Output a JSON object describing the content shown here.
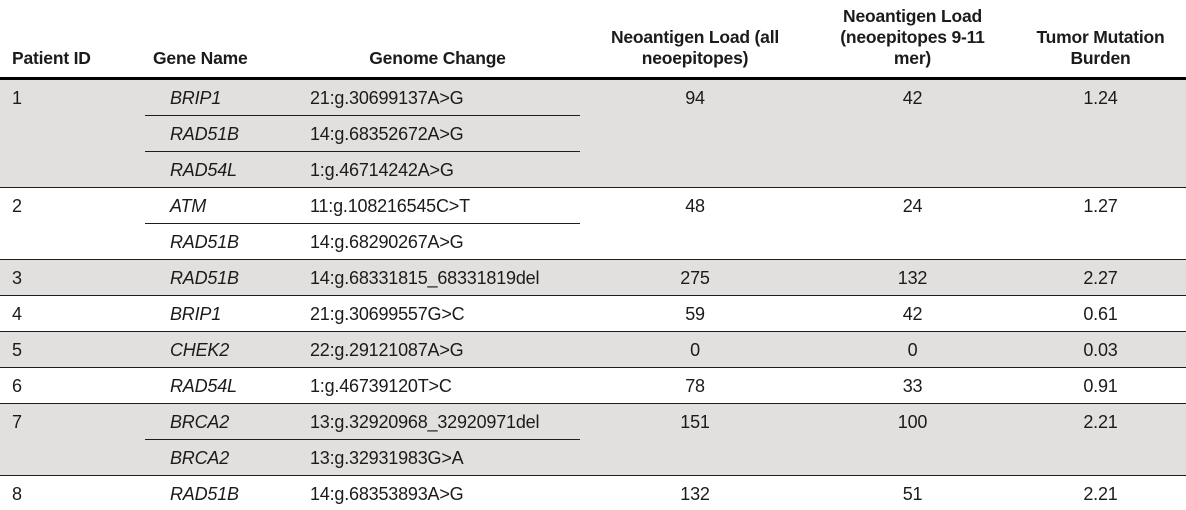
{
  "table": {
    "columns": [
      {
        "id": "patient-id",
        "label": "Patient ID"
      },
      {
        "id": "gene-name",
        "label": "Gene Name"
      },
      {
        "id": "genome-change",
        "label": "Genome Change"
      },
      {
        "id": "neoantigen-load-all",
        "label": "Neoantigen Load (all neoepitopes)"
      },
      {
        "id": "neoantigen-load-9-11",
        "label": "Neoantigen Load (neoepitopes 9-11 mer)"
      },
      {
        "id": "tumor-mutation-burden",
        "label": "Tumor Mutation Burden"
      }
    ],
    "rows": [
      {
        "patient_id": "1",
        "shaded": true,
        "mutations": [
          {
            "gene": "BRIP1",
            "genome_change": "21:g.30699137A>G"
          },
          {
            "gene": "RAD51B",
            "genome_change": "14:g.68352672A>G"
          },
          {
            "gene": "RAD54L",
            "genome_change": "1:g.46714242A>G"
          }
        ],
        "neoantigen_load_all": "94",
        "neoantigen_load_9_11": "42",
        "tumor_mutation_burden": "1.24"
      },
      {
        "patient_id": "2",
        "shaded": false,
        "mutations": [
          {
            "gene": "ATM",
            "genome_change": "11:g.108216545C>T"
          },
          {
            "gene": "RAD51B",
            "genome_change": "14:g.68290267A>G"
          }
        ],
        "neoantigen_load_all": "48",
        "neoantigen_load_9_11": "24",
        "tumor_mutation_burden": "1.27"
      },
      {
        "patient_id": "3",
        "shaded": true,
        "mutations": [
          {
            "gene": "RAD51B",
            "genome_change": "14:g.68331815_68331819del"
          }
        ],
        "neoantigen_load_all": "275",
        "neoantigen_load_9_11": "132",
        "tumor_mutation_burden": "2.27"
      },
      {
        "patient_id": "4",
        "shaded": false,
        "mutations": [
          {
            "gene": "BRIP1",
            "genome_change": "21:g.30699557G>C"
          }
        ],
        "neoantigen_load_all": "59",
        "neoantigen_load_9_11": "42",
        "tumor_mutation_burden": "0.61"
      },
      {
        "patient_id": "5",
        "shaded": true,
        "mutations": [
          {
            "gene": "CHEK2",
            "genome_change": "22:g.29121087A>G"
          }
        ],
        "neoantigen_load_all": "0",
        "neoantigen_load_9_11": "0",
        "tumor_mutation_burden": "0.03"
      },
      {
        "patient_id": "6",
        "shaded": false,
        "mutations": [
          {
            "gene": "RAD54L",
            "genome_change": "1:g.46739120T>C"
          }
        ],
        "neoantigen_load_all": "78",
        "neoantigen_load_9_11": "33",
        "tumor_mutation_burden": "0.91"
      },
      {
        "patient_id": "7",
        "shaded": true,
        "mutations": [
          {
            "gene": "BRCA2",
            "genome_change": "13:g.32920968_32920971del"
          },
          {
            "gene": "BRCA2",
            "genome_change": "13:g.32931983G>A"
          }
        ],
        "neoantigen_load_all": "151",
        "neoantigen_load_9_11": "100",
        "tumor_mutation_burden": "2.21"
      },
      {
        "patient_id": "8",
        "shaded": false,
        "mutations": [
          {
            "gene": "RAD51B",
            "genome_change": "14:g.68353893A>G"
          }
        ],
        "neoantigen_load_all": "132",
        "neoantigen_load_9_11": "51",
        "tumor_mutation_burden": "2.21"
      }
    ]
  },
  "colors": {
    "shaded_row": "#e2e0de",
    "header_rule": "#000000",
    "row_rule": "#1e1e1e",
    "bottom_rule": "#9b9b9b",
    "text": "#1b1b1b"
  }
}
